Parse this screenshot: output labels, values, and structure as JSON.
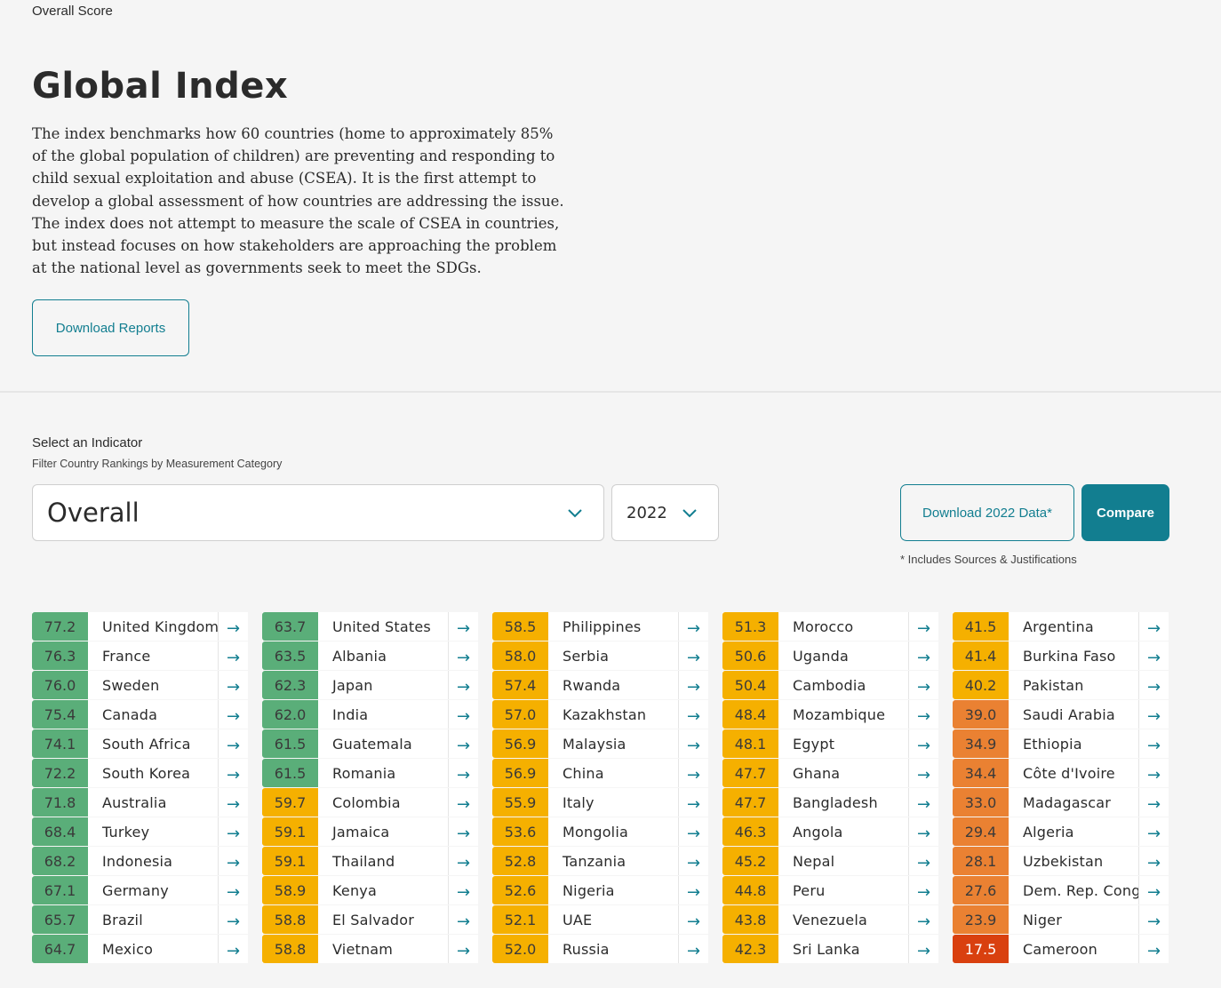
{
  "header": {
    "eyebrow": "Overall Score",
    "title": "Global Index",
    "intro": "The index benchmarks how 60 countries (home to approximately 85% of the global population of children) are preventing and responding to child sexual exploitation and abuse (CSEA). It is the first attempt to develop a global assessment of how countries are addressing the issue. The index does not attempt to measure the scale of CSEA in countries, but instead focuses on how stakeholders are approaching the problem at the national level as governments seek to meet the SDGs.",
    "download_reports_label": "Download Reports"
  },
  "filter": {
    "label": "Select an Indicator",
    "sublabel": "Filter Country Rankings by Measurement Category",
    "indicator_value": "Overall",
    "year_value": "2022",
    "download_data_label": "Download 2022 Data*",
    "compare_label": "Compare",
    "note": "* Includes Sources & Justifications"
  },
  "colors": {
    "accent": "#127e90",
    "green": "#5aae79",
    "yellow": "#f5b000",
    "orange": "#ea8132",
    "red": "#d9400f"
  },
  "arrow_icon": "→",
  "rankings": [
    {
      "score": "77.2",
      "country": "United Kingdom",
      "tier": "green"
    },
    {
      "score": "76.3",
      "country": "France",
      "tier": "green"
    },
    {
      "score": "76.0",
      "country": "Sweden",
      "tier": "green"
    },
    {
      "score": "75.4",
      "country": "Canada",
      "tier": "green"
    },
    {
      "score": "74.1",
      "country": "South Africa",
      "tier": "green"
    },
    {
      "score": "72.2",
      "country": "South Korea",
      "tier": "green"
    },
    {
      "score": "71.8",
      "country": "Australia",
      "tier": "green"
    },
    {
      "score": "68.4",
      "country": "Turkey",
      "tier": "green"
    },
    {
      "score": "68.2",
      "country": "Indonesia",
      "tier": "green"
    },
    {
      "score": "67.1",
      "country": "Germany",
      "tier": "green"
    },
    {
      "score": "65.7",
      "country": "Brazil",
      "tier": "green"
    },
    {
      "score": "64.7",
      "country": "Mexico",
      "tier": "green"
    },
    {
      "score": "63.7",
      "country": "United States",
      "tier": "green"
    },
    {
      "score": "63.5",
      "country": "Albania",
      "tier": "green"
    },
    {
      "score": "62.3",
      "country": "Japan",
      "tier": "green"
    },
    {
      "score": "62.0",
      "country": "India",
      "tier": "green"
    },
    {
      "score": "61.5",
      "country": "Guatemala",
      "tier": "green"
    },
    {
      "score": "61.5",
      "country": "Romania",
      "tier": "green"
    },
    {
      "score": "59.7",
      "country": "Colombia",
      "tier": "yellow"
    },
    {
      "score": "59.1",
      "country": "Jamaica",
      "tier": "yellow"
    },
    {
      "score": "59.1",
      "country": "Thailand",
      "tier": "yellow"
    },
    {
      "score": "58.9",
      "country": "Kenya",
      "tier": "yellow"
    },
    {
      "score": "58.8",
      "country": "El Salvador",
      "tier": "yellow"
    },
    {
      "score": "58.8",
      "country": "Vietnam",
      "tier": "yellow"
    },
    {
      "score": "58.5",
      "country": "Philippines",
      "tier": "yellow"
    },
    {
      "score": "58.0",
      "country": "Serbia",
      "tier": "yellow"
    },
    {
      "score": "57.4",
      "country": "Rwanda",
      "tier": "yellow"
    },
    {
      "score": "57.0",
      "country": "Kazakhstan",
      "tier": "yellow"
    },
    {
      "score": "56.9",
      "country": "Malaysia",
      "tier": "yellow"
    },
    {
      "score": "56.9",
      "country": "China",
      "tier": "yellow"
    },
    {
      "score": "55.9",
      "country": "Italy",
      "tier": "yellow"
    },
    {
      "score": "53.6",
      "country": "Mongolia",
      "tier": "yellow"
    },
    {
      "score": "52.8",
      "country": "Tanzania",
      "tier": "yellow"
    },
    {
      "score": "52.6",
      "country": "Nigeria",
      "tier": "yellow"
    },
    {
      "score": "52.1",
      "country": "UAE",
      "tier": "yellow"
    },
    {
      "score": "52.0",
      "country": "Russia",
      "tier": "yellow"
    },
    {
      "score": "51.3",
      "country": "Morocco",
      "tier": "yellow"
    },
    {
      "score": "50.6",
      "country": "Uganda",
      "tier": "yellow"
    },
    {
      "score": "50.4",
      "country": "Cambodia",
      "tier": "yellow"
    },
    {
      "score": "48.4",
      "country": "Mozambique",
      "tier": "yellow"
    },
    {
      "score": "48.1",
      "country": "Egypt",
      "tier": "yellow"
    },
    {
      "score": "47.7",
      "country": "Ghana",
      "tier": "yellow"
    },
    {
      "score": "47.7",
      "country": "Bangladesh",
      "tier": "yellow"
    },
    {
      "score": "46.3",
      "country": "Angola",
      "tier": "yellow"
    },
    {
      "score": "45.2",
      "country": "Nepal",
      "tier": "yellow"
    },
    {
      "score": "44.8",
      "country": "Peru",
      "tier": "yellow"
    },
    {
      "score": "43.8",
      "country": "Venezuela",
      "tier": "yellow"
    },
    {
      "score": "42.3",
      "country": "Sri Lanka",
      "tier": "yellow"
    },
    {
      "score": "41.5",
      "country": "Argentina",
      "tier": "yellow"
    },
    {
      "score": "41.4",
      "country": "Burkina Faso",
      "tier": "yellow"
    },
    {
      "score": "40.2",
      "country": "Pakistan",
      "tier": "yellow"
    },
    {
      "score": "39.0",
      "country": "Saudi Arabia",
      "tier": "orange"
    },
    {
      "score": "34.9",
      "country": "Ethiopia",
      "tier": "orange"
    },
    {
      "score": "34.4",
      "country": "Côte d'Ivoire",
      "tier": "orange"
    },
    {
      "score": "33.0",
      "country": "Madagascar",
      "tier": "orange"
    },
    {
      "score": "29.4",
      "country": "Algeria",
      "tier": "orange"
    },
    {
      "score": "28.1",
      "country": "Uzbekistan",
      "tier": "orange"
    },
    {
      "score": "27.6",
      "country": "Dem. Rep. Congo",
      "tier": "orange"
    },
    {
      "score": "23.9",
      "country": "Niger",
      "tier": "orange"
    },
    {
      "score": "17.5",
      "country": "Cameroon",
      "tier": "red"
    }
  ]
}
